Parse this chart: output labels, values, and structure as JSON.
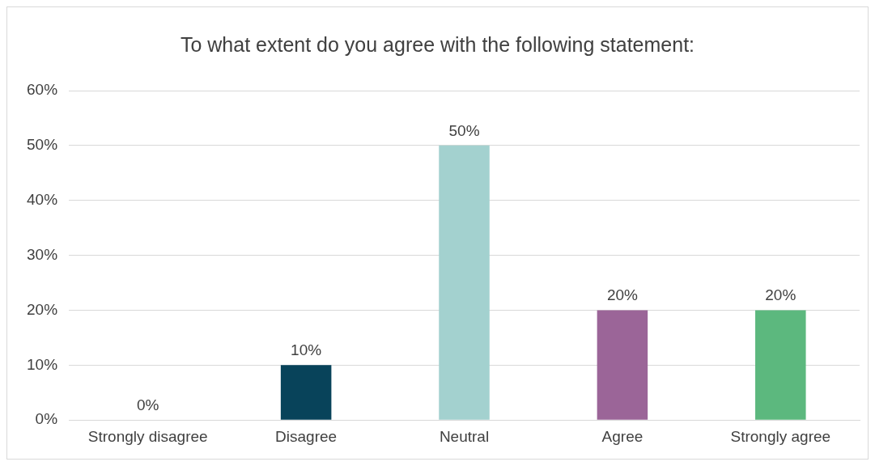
{
  "chart_data": {
    "type": "bar",
    "title": "To what extent do you agree with the following statement:",
    "categories": [
      "Strongly disagree",
      "Disagree",
      "Neutral",
      "Agree",
      "Strongly agree"
    ],
    "values": [
      0,
      10,
      50,
      20,
      20
    ],
    "colors": [
      "#7f7f7f",
      "#08435a",
      "#a3d1cf",
      "#9b6598",
      "#5cb87e"
    ],
    "ylim": [
      0,
      60
    ],
    "yticks": [
      {
        "value": 0,
        "label": "0%"
      },
      {
        "value": 10,
        "label": "10%"
      },
      {
        "value": 20,
        "label": "20%"
      },
      {
        "value": 30,
        "label": "30%"
      },
      {
        "value": 40,
        "label": "40%"
      },
      {
        "value": 50,
        "label": "50%"
      },
      {
        "value": 60,
        "label": "60%"
      }
    ],
    "value_labels": [
      "0%",
      "10%",
      "50%",
      "20%",
      "20%"
    ],
    "grid": "y",
    "legend": false
  }
}
